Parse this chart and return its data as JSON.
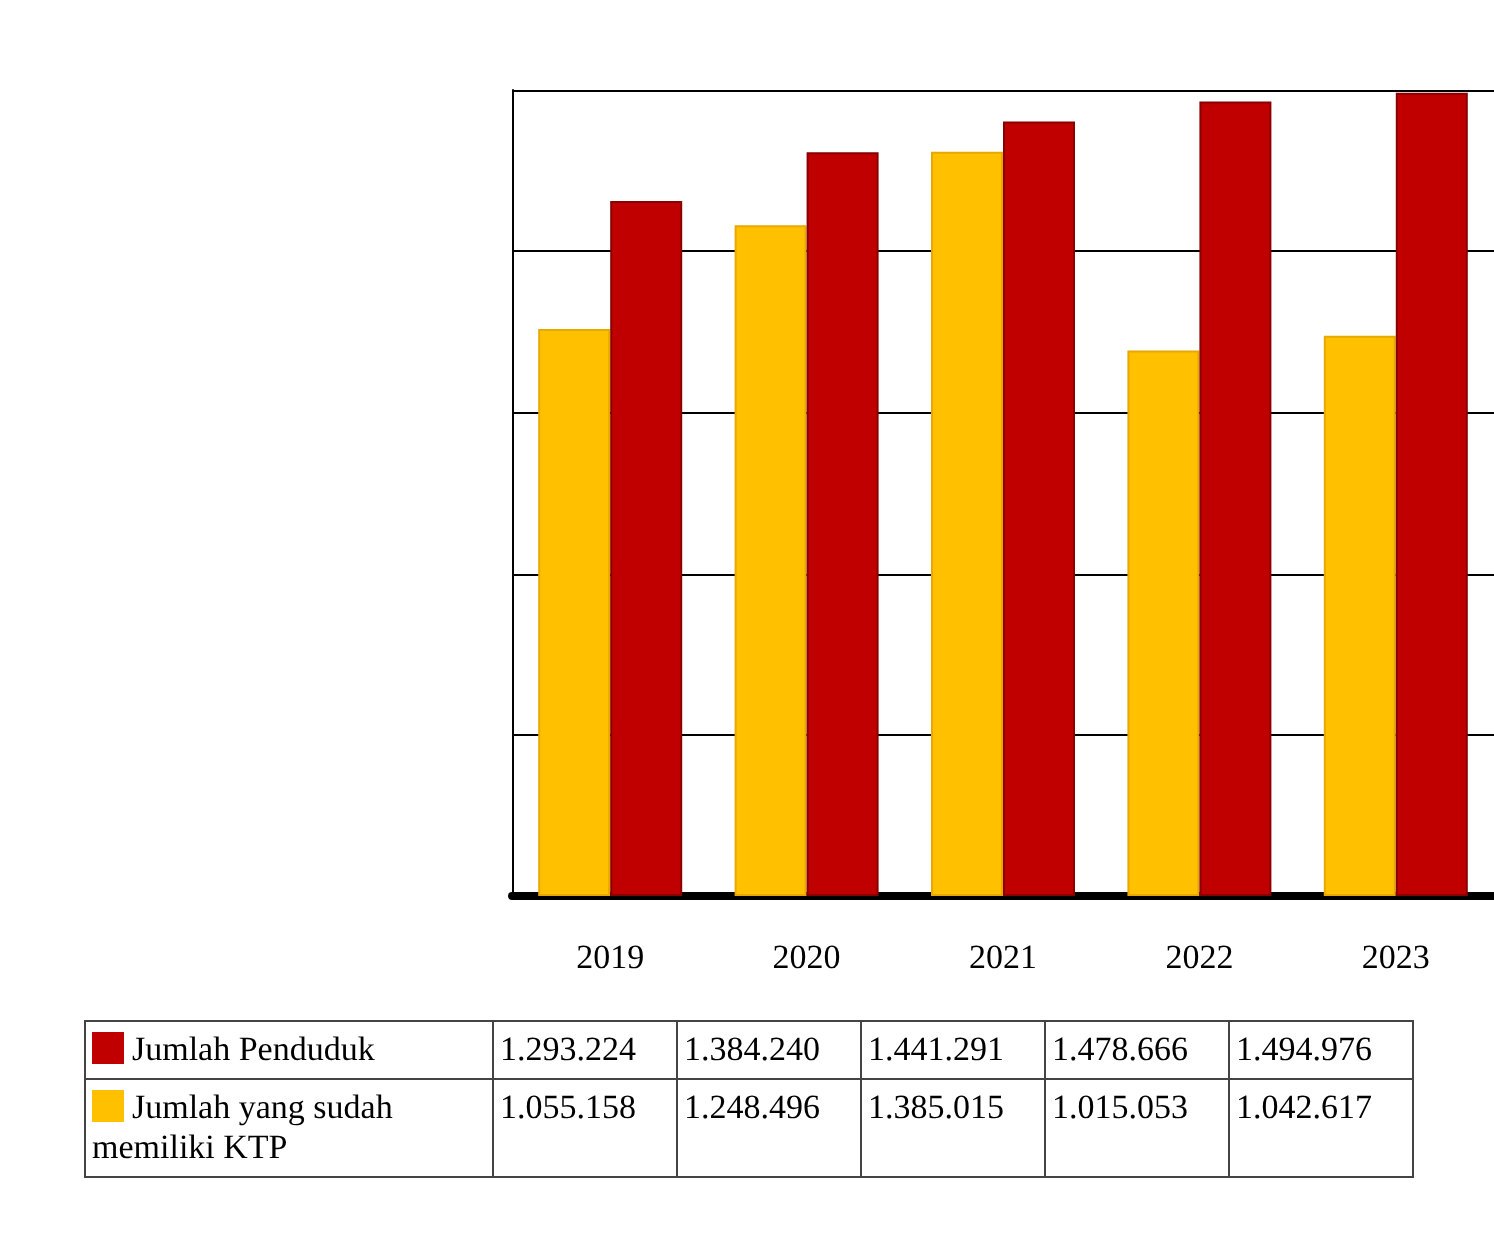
{
  "chart_data": {
    "type": "bar",
    "categories": [
      "2019",
      "2020",
      "2021",
      "2022",
      "2023"
    ],
    "series": [
      {
        "name": "Jumlah Penduduk",
        "color": "#c00000",
        "values": [
          1293224,
          1384240,
          1441291,
          1478666,
          1494976
        ],
        "value_labels": [
          "1.293.224",
          "1.384.240",
          "1.441.291",
          "1.478.666",
          "1.494.976"
        ]
      },
      {
        "name": "Jumlah yang sudah memiliki KTP",
        "color": "#ffc000",
        "values": [
          1055158,
          1248496,
          1385015,
          1015053,
          1042617
        ],
        "value_labels": [
          "1.055.158",
          "1.248.496",
          "1.385.015",
          "1.015.053",
          "1.042.617"
        ]
      }
    ],
    "grid": "y",
    "legend": "bottom",
    "tick_labels": "x"
  }
}
